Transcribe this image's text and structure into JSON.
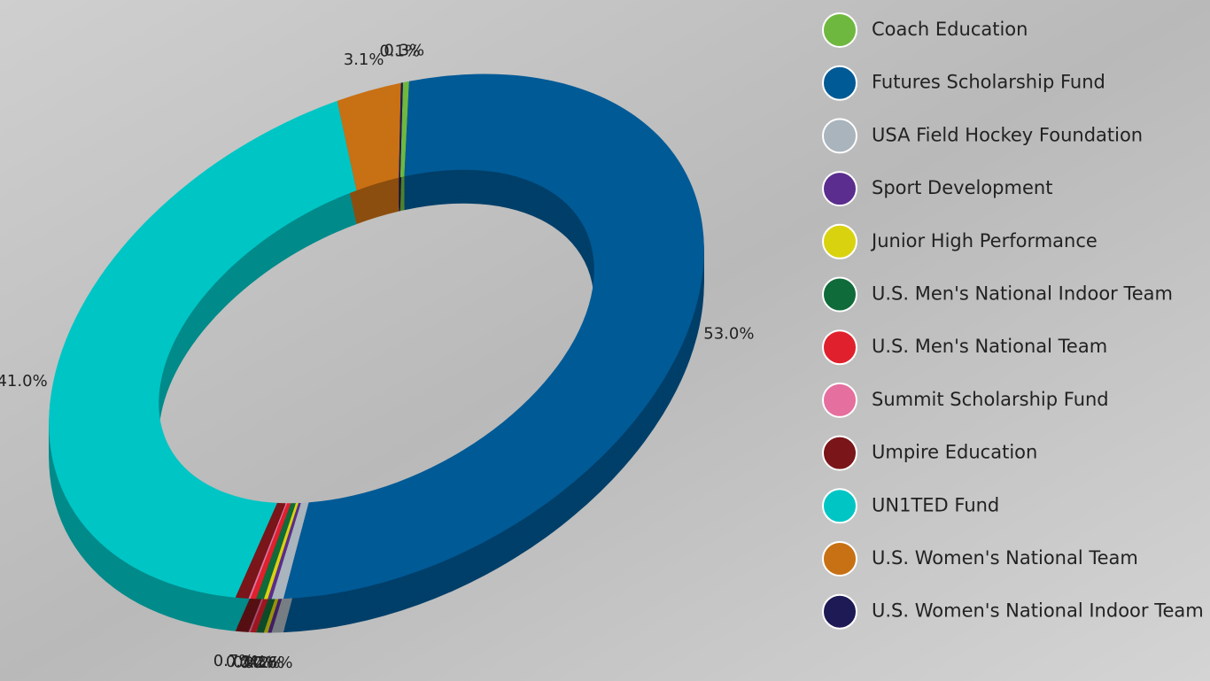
{
  "chart_data": {
    "type": "donut3d",
    "categories": [
      "Coach Education",
      "Futures Scholarship Fund",
      "USA Field Hockey Foundation",
      "Sport Development",
      "Junior High Performance",
      "U.S. Men's National Indoor Team",
      "U.S. Men's National Team",
      "Summit Scholarship Fund",
      "Umpire Education",
      "UN1TED Fund",
      "U.S. Women's National Team",
      "U.S. Women's National Indoor Team"
    ],
    "values": [
      0.3,
      53.0,
      0.6,
      0.2,
      0.2,
      0.4,
      0.3,
      0.1,
      0.7,
      41.0,
      3.1,
      0.1
    ],
    "value_labels": [
      "0.3%",
      "53.0%",
      "0.6%",
      "0.2%",
      "0.2%",
      "0.4%",
      "0.3%",
      null,
      "0.7%",
      "41.0%",
      "3.1%",
      "0.1%"
    ],
    "colors": [
      "#6fb83f",
      "#005a96",
      "#a9b4bd",
      "#5b2d8e",
      "#d9d20f",
      "#0f6b3a",
      "#e0202c",
      "#e56f9e",
      "#7a1519",
      "#00c5c5",
      "#c87014",
      "#1e1a55"
    ],
    "legend": "right"
  }
}
